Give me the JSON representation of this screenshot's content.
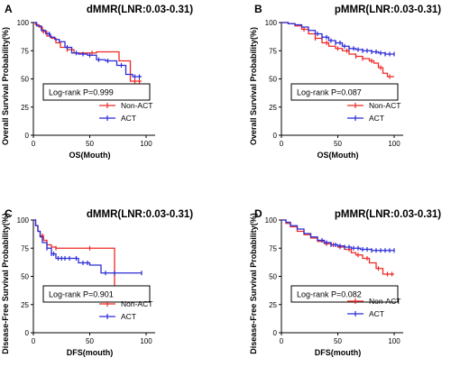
{
  "colors": {
    "non_act": "#ee2a24",
    "act": "#2b2bd9"
  },
  "chart_data": [
    {
      "type": "line",
      "letter": "A",
      "title": "dMMR(LNR:0.03-0.31)",
      "xlabel": "OS(Mouth)",
      "ylabel": "Overall Survival Probability(%)",
      "xlim": [
        0,
        100
      ],
      "ylim": [
        0,
        100
      ],
      "xticks": [
        "0",
        "50",
        "100"
      ],
      "yticks": [
        "0",
        "25",
        "50",
        "75",
        "100"
      ],
      "pvalue_text": "Log-rank P=0.999",
      "legend": [
        "Non-ACT",
        "ACT"
      ],
      "series": [
        {
          "name": "Non-ACT",
          "color_key": "non_act",
          "x": [
            0,
            2,
            5,
            8,
            12,
            16,
            20,
            24,
            30,
            36,
            44,
            56,
            70,
            76,
            86,
            96
          ],
          "y": [
            100,
            98,
            96,
            92,
            88,
            86,
            82,
            78,
            76,
            73,
            73,
            74,
            74,
            66,
            48,
            48
          ],
          "censor_x": [
            9,
            30,
            52,
            90,
            94
          ]
        },
        {
          "name": "ACT",
          "color_key": "act",
          "x": [
            0,
            3,
            7,
            11,
            15,
            19,
            23,
            28,
            34,
            40,
            48,
            56,
            64,
            74,
            82,
            88,
            96
          ],
          "y": [
            100,
            97,
            93,
            90,
            87,
            85,
            83,
            78,
            73,
            72,
            71,
            67,
            66,
            62,
            54,
            52,
            52
          ],
          "censor_x": [
            14,
            30,
            38,
            44,
            50,
            58,
            66,
            78,
            90,
            94
          ]
        }
      ]
    },
    {
      "type": "line",
      "letter": "B",
      "title": "pMMR(LNR:0.03-0.31)",
      "xlabel": "OS(Mouth)",
      "ylabel": "Overall Survival Probability(%)",
      "xlim": [
        0,
        100
      ],
      "ylim": [
        0,
        100
      ],
      "xticks": [
        "0",
        "50",
        "100"
      ],
      "yticks": [
        "0",
        "25",
        "50",
        "75",
        "100"
      ],
      "pvalue_text": "Log-rank P=0.087",
      "legend": [
        "Non-ACT",
        "ACT"
      ],
      "series": [
        {
          "name": "Non-ACT",
          "color_key": "non_act",
          "x": [
            0,
            6,
            12,
            18,
            24,
            30,
            36,
            42,
            48,
            54,
            60,
            66,
            72,
            78,
            82,
            86,
            90,
            94,
            100
          ],
          "y": [
            100,
            99,
            97,
            94,
            90,
            86,
            82,
            79,
            77,
            75,
            72,
            70,
            68,
            66,
            64,
            60,
            55,
            52,
            52
          ],
          "censor_x": [
            20,
            30,
            40,
            50,
            58,
            66,
            72,
            80,
            88,
            96
          ]
        },
        {
          "name": "ACT",
          "color_key": "act",
          "x": [
            0,
            6,
            12,
            18,
            24,
            30,
            36,
            42,
            48,
            54,
            60,
            66,
            72,
            80,
            86,
            92,
            100
          ],
          "y": [
            100,
            99,
            98,
            96,
            93,
            90,
            87,
            84,
            82,
            79,
            77,
            76,
            75,
            74,
            73,
            72,
            72
          ],
          "censor_x": [
            32,
            36,
            40,
            44,
            48,
            52,
            56,
            60,
            64,
            68,
            72,
            76,
            80,
            84,
            88,
            92,
            96,
            100
          ]
        }
      ]
    },
    {
      "type": "line",
      "letter": "C",
      "title": "dMMR(LNR:0.03-0.31)",
      "xlabel": "DFS(mouth)",
      "ylabel": "Disease-Free Survival Probability(%)",
      "xlim": [
        0,
        100
      ],
      "ylim": [
        0,
        100
      ],
      "xticks": [
        "0",
        "50",
        "100"
      ],
      "yticks": [
        "0",
        "25",
        "50",
        "75",
        "100"
      ],
      "pvalue_text": "Log-rank P=0.901",
      "legend": [
        "Non-ACT",
        "ACT"
      ],
      "series": [
        {
          "name": "Non-ACT",
          "color_key": "non_act",
          "x": [
            0,
            2,
            4,
            6,
            9,
            12,
            16,
            20,
            70,
            72,
            80
          ],
          "y": [
            100,
            95,
            90,
            86,
            82,
            78,
            76,
            75,
            75,
            37,
            37
          ],
          "censor_x": [
            8,
            20,
            50,
            78
          ]
        },
        {
          "name": "ACT",
          "color_key": "act",
          "x": [
            0,
            2,
            4,
            6,
            8,
            12,
            16,
            20,
            30,
            40,
            50,
            60,
            96
          ],
          "y": [
            100,
            95,
            90,
            85,
            80,
            75,
            70,
            66,
            66,
            62,
            60,
            53,
            53
          ],
          "censor_x": [
            12,
            16,
            18,
            22,
            25,
            28,
            32,
            38,
            44,
            48,
            64,
            72,
            96
          ]
        }
      ]
    },
    {
      "type": "line",
      "letter": "D",
      "title": "pMMR(LNR:0.03-0.31)",
      "xlabel": "DFS(mouth)",
      "ylabel": "Disease-Free Survival Probability(%)",
      "xlim": [
        0,
        100
      ],
      "ylim": [
        0,
        100
      ],
      "xticks": [
        "0",
        "50",
        "100"
      ],
      "yticks": [
        "0",
        "25",
        "50",
        "75",
        "100"
      ],
      "pvalue_text": "Log-rank P=0.082",
      "legend": [
        "Non-ACT",
        "ACT"
      ],
      "series": [
        {
          "name": "Non-ACT",
          "color_key": "non_act",
          "x": [
            0,
            4,
            8,
            14,
            20,
            26,
            32,
            38,
            44,
            50,
            56,
            62,
            66,
            72,
            78,
            84,
            90,
            100
          ],
          "y": [
            100,
            97,
            94,
            90,
            87,
            84,
            81,
            79,
            78,
            76,
            74,
            71,
            69,
            66,
            62,
            57,
            52,
            52
          ],
          "censor_x": [
            40,
            46,
            52,
            60,
            68,
            76,
            86,
            94,
            98
          ]
        },
        {
          "name": "ACT",
          "color_key": "act",
          "x": [
            0,
            4,
            8,
            14,
            20,
            26,
            32,
            38,
            44,
            50,
            56,
            62,
            70,
            80,
            90,
            100
          ],
          "y": [
            100,
            98,
            95,
            92,
            88,
            85,
            82,
            80,
            78,
            77,
            76,
            75,
            74,
            73,
            73,
            73
          ],
          "censor_x": [
            36,
            40,
            44,
            48,
            52,
            56,
            60,
            64,
            68,
            72,
            76,
            80,
            84,
            88,
            92,
            96,
            100
          ]
        }
      ]
    }
  ]
}
